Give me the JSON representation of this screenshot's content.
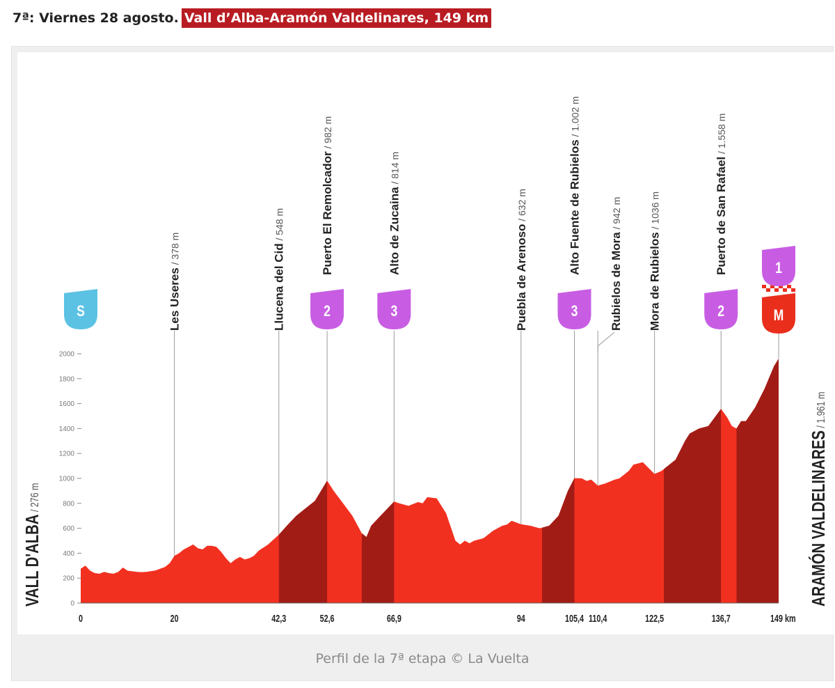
{
  "heading": {
    "date": "7ª: Viernes 28 agosto.",
    "stage": "Vall d’Alba-Aramón Valdelinares, 149 km"
  },
  "caption": "Perfil de la 7ª etapa © La Vuelta",
  "colors": {
    "profile": "#f23020",
    "climb": "#a21c16",
    "stage_banner": "#b81c22",
    "start_badge": "#5cc2e4",
    "mountain_badge": "#c85de3",
    "finish_badge": "#ea2e1c"
  },
  "chart_data": {
    "type": "area",
    "title": "",
    "xlabel": "km",
    "ylabel": "m",
    "xlim": [
      0,
      149
    ],
    "ylim": [
      0,
      2000
    ],
    "yticks": [
      0,
      200,
      400,
      600,
      800,
      1000,
      1200,
      1400,
      1600,
      1800,
      2000
    ],
    "xticks": [
      {
        "value": 0,
        "label": "0"
      },
      {
        "value": 20,
        "label": "20"
      },
      {
        "value": 42.3,
        "label": "42,3"
      },
      {
        "value": 52.6,
        "label": "52,6"
      },
      {
        "value": 66.9,
        "label": "66,9"
      },
      {
        "value": 94,
        "label": "94"
      },
      {
        "value": 105.4,
        "label": "105,4"
      },
      {
        "value": 110.4,
        "label": "110,4"
      },
      {
        "value": 122.5,
        "label": "122,5"
      },
      {
        "value": 136.7,
        "label": "136,7"
      },
      {
        "value": 149,
        "label": "149 km"
      }
    ],
    "profile": [
      [
        0,
        276
      ],
      [
        1,
        300
      ],
      [
        2,
        260
      ],
      [
        3,
        240
      ],
      [
        4,
        235
      ],
      [
        5,
        250
      ],
      [
        6,
        240
      ],
      [
        7,
        235
      ],
      [
        8,
        250
      ],
      [
        9,
        285
      ],
      [
        10,
        260
      ],
      [
        11,
        255
      ],
      [
        12,
        250
      ],
      [
        13,
        248
      ],
      [
        14,
        250
      ],
      [
        16,
        262
      ],
      [
        18,
        290
      ],
      [
        19,
        320
      ],
      [
        20,
        378
      ],
      [
        21,
        400
      ],
      [
        22,
        430
      ],
      [
        23,
        450
      ],
      [
        24,
        470
      ],
      [
        25,
        440
      ],
      [
        26,
        430
      ],
      [
        27,
        460
      ],
      [
        28,
        460
      ],
      [
        29,
        450
      ],
      [
        30,
        410
      ],
      [
        31,
        360
      ],
      [
        32,
        320
      ],
      [
        33,
        350
      ],
      [
        34,
        370
      ],
      [
        35,
        350
      ],
      [
        36,
        360
      ],
      [
        37,
        380
      ],
      [
        38,
        420
      ],
      [
        40,
        470
      ],
      [
        42.3,
        548
      ],
      [
        44,
        620
      ],
      [
        46,
        700
      ],
      [
        48,
        760
      ],
      [
        50,
        820
      ],
      [
        52.6,
        982
      ],
      [
        54,
        900
      ],
      [
        56,
        800
      ],
      [
        58,
        700
      ],
      [
        60,
        560
      ],
      [
        61,
        530
      ],
      [
        62,
        620
      ],
      [
        64,
        700
      ],
      [
        66.9,
        814
      ],
      [
        68,
        800
      ],
      [
        70,
        780
      ],
      [
        72,
        810
      ],
      [
        73,
        800
      ],
      [
        74,
        850
      ],
      [
        76,
        840
      ],
      [
        78,
        720
      ],
      [
        80,
        500
      ],
      [
        81,
        470
      ],
      [
        82,
        500
      ],
      [
        83,
        480
      ],
      [
        84,
        500
      ],
      [
        86,
        520
      ],
      [
        88,
        580
      ],
      [
        90,
        620
      ],
      [
        91,
        630
      ],
      [
        92,
        660
      ],
      [
        94,
        632
      ],
      [
        96,
        620
      ],
      [
        98,
        600
      ],
      [
        100,
        620
      ],
      [
        102,
        700
      ],
      [
        104,
        900
      ],
      [
        105.4,
        1002
      ],
      [
        107,
        1000
      ],
      [
        108,
        980
      ],
      [
        109,
        990
      ],
      [
        110.4,
        942
      ],
      [
        112,
        960
      ],
      [
        114,
        990
      ],
      [
        115,
        1000
      ],
      [
        117,
        1060
      ],
      [
        118,
        1110
      ],
      [
        120,
        1130
      ],
      [
        122.5,
        1036
      ],
      [
        124,
        1060
      ],
      [
        125,
        1090
      ],
      [
        127,
        1150
      ],
      [
        129,
        1300
      ],
      [
        130,
        1360
      ],
      [
        132,
        1400
      ],
      [
        134,
        1420
      ],
      [
        136.7,
        1558
      ],
      [
        138,
        1490
      ],
      [
        139,
        1420
      ],
      [
        140,
        1400
      ],
      [
        141,
        1460
      ],
      [
        142,
        1460
      ],
      [
        144,
        1570
      ],
      [
        146,
        1720
      ],
      [
        148,
        1900
      ],
      [
        149,
        1961
      ]
    ],
    "climb_segments": [
      [
        42.3,
        52.6
      ],
      [
        60,
        66.9
      ],
      [
        98.5,
        105.4
      ],
      [
        124.5,
        136.7
      ],
      [
        140,
        149
      ]
    ],
    "points": [
      {
        "km": 0,
        "name": "VALL D'ALBA",
        "alt": "276 m",
        "badge": "S",
        "kind": "start"
      },
      {
        "km": 20,
        "name": "Les Useres",
        "alt": "378 m"
      },
      {
        "km": 42.3,
        "name": "Llucena del Cid",
        "alt": "548 m"
      },
      {
        "km": 52.6,
        "name": "Puerto El Remolcador",
        "alt": "982 m",
        "badge": "2",
        "kind": "mountain"
      },
      {
        "km": 66.9,
        "name": "Alto de Zucaina",
        "alt": "814 m",
        "badge": "3",
        "kind": "mountain"
      },
      {
        "km": 94,
        "name": "Puebla de Arenoso",
        "alt": "632 m"
      },
      {
        "km": 105.4,
        "name": "Alto Fuente de Rubielos",
        "alt": "1.002 m",
        "badge": "3",
        "kind": "mountain"
      },
      {
        "km": 110.4,
        "name": "Rubielos de Mora",
        "alt": "942 m"
      },
      {
        "km": 122.5,
        "name": "Mora de Rubielos",
        "alt": "1036 m"
      },
      {
        "km": 136.7,
        "name": "Puerto de San Rafael",
        "alt": "1.558 m",
        "badge": "2",
        "kind": "mountain"
      },
      {
        "km": 149,
        "name": "ARAMÓN VALDELINARES",
        "alt": "1.961 m",
        "badge": "M",
        "badge2": "1",
        "kind": "finish"
      }
    ]
  }
}
